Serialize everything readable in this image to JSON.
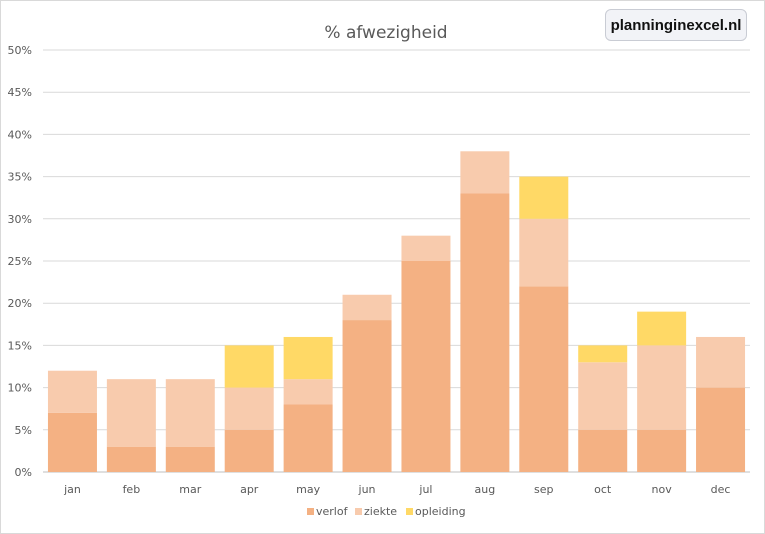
{
  "badge": {
    "text": "planninginexcel.nl"
  },
  "chart_data": {
    "type": "bar",
    "stacked": true,
    "title": "% afwezigheid",
    "xlabel": "",
    "ylabel": "",
    "ylim": [
      0,
      50
    ],
    "yticks": [
      "0%",
      "5%",
      "10%",
      "15%",
      "20%",
      "25%",
      "30%",
      "35%",
      "40%",
      "45%",
      "50%"
    ],
    "grid": true,
    "legend_position": "bottom",
    "categories": [
      "jan",
      "feb",
      "mar",
      "apr",
      "may",
      "jun",
      "jul",
      "aug",
      "sep",
      "oct",
      "nov",
      "dec"
    ],
    "series": [
      {
        "name": "verlof",
        "color": "#f4b183",
        "values": [
          7,
          3,
          3,
          5,
          8,
          18,
          25,
          33,
          22,
          5,
          5,
          10
        ]
      },
      {
        "name": "ziekte",
        "color": "#f8cbad",
        "values": [
          5,
          8,
          8,
          5,
          3,
          3,
          3,
          5,
          8,
          8,
          10,
          6
        ]
      },
      {
        "name": "opleiding",
        "color": "#ffd966",
        "values": [
          0,
          0,
          0,
          5,
          5,
          0,
          0,
          0,
          5,
          2,
          4,
          0
        ]
      }
    ]
  }
}
